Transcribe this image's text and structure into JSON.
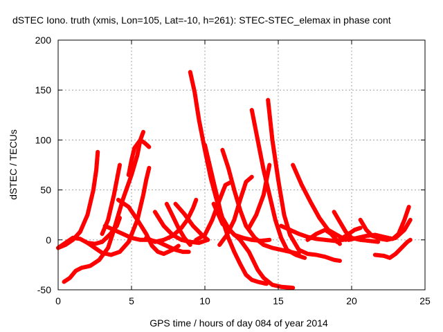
{
  "chart_data": {
    "type": "scatter",
    "title": "dSTEC Iono. truth (xmis, Lon=105, Lat=-10, h=261): STEC-STEC_elemax in phase cont",
    "xlabel": "GPS time / hours of day 084 of year 2014",
    "ylabel": "dSTEC  / TECUs",
    "xlim": [
      0,
      25
    ],
    "ylim": [
      -50,
      200
    ],
    "xticks": [
      "0",
      "5",
      "10",
      "15",
      "20",
      "25"
    ],
    "yticks": [
      "-50",
      "0",
      "50",
      "100",
      "150",
      "200"
    ],
    "grid": true,
    "marker": "+",
    "color": "#ff0000",
    "series": [
      {
        "points": [
          [
            0.0,
            -8
          ],
          [
            0.5,
            -5
          ],
          [
            1.0,
            0
          ],
          [
            1.5,
            8
          ],
          [
            2.0,
            25
          ],
          [
            2.4,
            50
          ],
          [
            2.6,
            70
          ],
          [
            2.7,
            88
          ]
        ]
      },
      {
        "points": [
          [
            0.4,
            -42
          ],
          [
            0.8,
            -38
          ],
          [
            1.2,
            -31
          ],
          [
            1.6,
            -28
          ],
          [
            2.2,
            -26
          ],
          [
            2.8,
            -20
          ],
          [
            3.4,
            -8
          ],
          [
            3.8,
            10
          ],
          [
            4.4,
            40
          ],
          [
            5.0,
            65
          ],
          [
            5.4,
            85
          ],
          [
            5.6,
            100
          ],
          [
            5.8,
            108
          ]
        ]
      },
      {
        "points": [
          [
            0.0,
            -8
          ],
          [
            0.5,
            -3
          ],
          [
            1.0,
            2
          ],
          [
            1.5,
            1
          ],
          [
            2.0,
            -3
          ],
          [
            2.5,
            -4
          ],
          [
            3.0,
            -2
          ],
          [
            3.5,
            5
          ],
          [
            4.0,
            14
          ],
          [
            4.2,
            22
          ]
        ]
      },
      {
        "points": [
          [
            3.0,
            6
          ],
          [
            3.4,
            20
          ],
          [
            3.8,
            45
          ],
          [
            4.2,
            75
          ]
        ]
      },
      {
        "points": [
          [
            2.0,
            -3
          ],
          [
            2.5,
            -8
          ],
          [
            3.0,
            -13
          ],
          [
            3.6,
            -15
          ],
          [
            4.2,
            -12
          ],
          [
            4.8,
            -2
          ],
          [
            5.4,
            20
          ],
          [
            5.8,
            45
          ],
          [
            6.0,
            60
          ],
          [
            6.2,
            72
          ]
        ]
      },
      {
        "points": [
          [
            4.8,
            65
          ],
          [
            5.0,
            80
          ],
          [
            5.2,
            92
          ],
          [
            5.6,
            100
          ],
          [
            5.9,
            97
          ],
          [
            6.2,
            93
          ]
        ]
      },
      {
        "points": [
          [
            3.2,
            14
          ],
          [
            3.8,
            10
          ],
          [
            4.4,
            6
          ],
          [
            5.0,
            2
          ],
          [
            5.6,
            0
          ],
          [
            6.2,
            0
          ],
          [
            6.8,
            -2
          ],
          [
            7.4,
            -6
          ],
          [
            8.0,
            -10
          ],
          [
            8.5,
            -12
          ],
          [
            8.9,
            -12
          ]
        ]
      },
      {
        "points": [
          [
            4.1,
            40
          ],
          [
            4.8,
            33
          ],
          [
            5.4,
            20
          ],
          [
            6.0,
            6
          ],
          [
            6.4,
            -6
          ],
          [
            6.8,
            -12
          ],
          [
            7.2,
            -14
          ],
          [
            7.8,
            -10
          ],
          [
            8.2,
            -6
          ]
        ]
      },
      {
        "points": [
          [
            6.0,
            2
          ],
          [
            6.6,
            -2
          ],
          [
            7.2,
            0
          ],
          [
            7.8,
            4
          ],
          [
            8.4,
            12
          ],
          [
            8.8,
            20
          ],
          [
            9.2,
            32
          ],
          [
            9.4,
            40
          ]
        ]
      },
      {
        "points": [
          [
            6.6,
            28
          ],
          [
            7.2,
            14
          ],
          [
            7.8,
            5
          ],
          [
            8.4,
            0
          ],
          [
            9.0,
            -2
          ],
          [
            9.6,
            -3
          ],
          [
            10.2,
            0
          ]
        ]
      },
      {
        "points": [
          [
            7.4,
            36
          ],
          [
            7.8,
            24
          ],
          [
            8.2,
            12
          ],
          [
            8.6,
            2
          ],
          [
            9.0,
            -5
          ]
        ]
      },
      {
        "points": [
          [
            8.0,
            36
          ],
          [
            8.6,
            26
          ],
          [
            9.2,
            14
          ],
          [
            9.8,
            5
          ],
          [
            10.2,
            0
          ]
        ]
      },
      {
        "points": [
          [
            9.0,
            168
          ],
          [
            9.3,
            148
          ],
          [
            9.6,
            120
          ],
          [
            10.0,
            90
          ],
          [
            10.4,
            62
          ],
          [
            10.8,
            40
          ],
          [
            11.2,
            22
          ],
          [
            11.6,
            12
          ],
          [
            12.0,
            5
          ],
          [
            12.6,
            2
          ],
          [
            13.2,
            0
          ],
          [
            13.8,
            -1
          ],
          [
            14.4,
            0
          ]
        ]
      },
      {
        "points": [
          [
            10.0,
            95
          ],
          [
            10.4,
            70
          ],
          [
            10.8,
            45
          ],
          [
            11.2,
            20
          ],
          [
            11.6,
            2
          ],
          [
            12.0,
            -12
          ],
          [
            12.4,
            -24
          ],
          [
            12.8,
            -35
          ],
          [
            13.2,
            -40
          ],
          [
            13.6,
            -42
          ],
          [
            14.2,
            -44
          ]
        ]
      },
      {
        "points": [
          [
            9.4,
            0
          ],
          [
            10.0,
            5
          ],
          [
            10.5,
            20
          ],
          [
            11.0,
            40
          ],
          [
            11.4,
            55
          ],
          [
            11.8,
            58
          ]
        ]
      },
      {
        "points": [
          [
            11.0,
            -5
          ],
          [
            11.5,
            5
          ],
          [
            12.0,
            20
          ],
          [
            12.4,
            40
          ],
          [
            12.8,
            58
          ],
          [
            13.2,
            63
          ]
        ]
      },
      {
        "points": [
          [
            11.2,
            90
          ],
          [
            11.6,
            72
          ],
          [
            12.0,
            50
          ],
          [
            12.4,
            30
          ],
          [
            12.8,
            14
          ],
          [
            13.4,
            2
          ],
          [
            14.0,
            -5
          ],
          [
            14.6,
            -8
          ],
          [
            15.2,
            -10
          ],
          [
            15.8,
            -12
          ],
          [
            16.4,
            -14
          ]
        ]
      },
      {
        "points": [
          [
            13.2,
            130
          ],
          [
            13.6,
            100
          ],
          [
            14.0,
            70
          ],
          [
            14.4,
            45
          ],
          [
            14.8,
            20
          ],
          [
            15.2,
            2
          ],
          [
            15.6,
            -10
          ],
          [
            16.2,
            -15
          ],
          [
            16.8,
            -18
          ]
        ]
      },
      {
        "points": [
          [
            14.3,
            140
          ],
          [
            14.6,
            100
          ],
          [
            15.0,
            60
          ],
          [
            15.4,
            25
          ],
          [
            15.8,
            5
          ],
          [
            16.4,
            -10
          ],
          [
            17.0,
            -14
          ],
          [
            17.6,
            -15
          ],
          [
            18.2,
            -17
          ],
          [
            18.8,
            -20
          ],
          [
            19.2,
            -21
          ]
        ]
      },
      {
        "points": [
          [
            13.0,
            12
          ],
          [
            13.5,
            25
          ],
          [
            14.0,
            45
          ],
          [
            14.4,
            75
          ]
        ]
      },
      {
        "points": [
          [
            10.6,
            36
          ],
          [
            11.2,
            16
          ],
          [
            11.8,
            8
          ],
          [
            12.4,
            0
          ],
          [
            13.0,
            -12
          ],
          [
            13.6,
            -30
          ],
          [
            14.0,
            -38
          ],
          [
            14.6,
            -45
          ],
          [
            15.2,
            -47
          ],
          [
            16.0,
            -48
          ]
        ]
      },
      {
        "points": [
          [
            16.0,
            75
          ],
          [
            16.6,
            55
          ],
          [
            17.2,
            38
          ],
          [
            17.8,
            22
          ],
          [
            18.4,
            10
          ],
          [
            19.0,
            5
          ],
          [
            19.6,
            0
          ]
        ]
      },
      {
        "points": [
          [
            15.2,
            14
          ],
          [
            15.8,
            10
          ],
          [
            16.4,
            6
          ],
          [
            17.0,
            3
          ],
          [
            17.6,
            1
          ],
          [
            18.2,
            0
          ],
          [
            18.8,
            -1
          ],
          [
            19.4,
            0
          ],
          [
            20.0,
            2
          ]
        ]
      },
      {
        "points": [
          [
            17.0,
            0
          ],
          [
            17.6,
            6
          ],
          [
            18.2,
            10
          ],
          [
            18.6,
            6
          ],
          [
            19.2,
            -4
          ]
        ]
      },
      {
        "points": [
          [
            18.8,
            28
          ],
          [
            19.2,
            18
          ],
          [
            19.6,
            8
          ],
          [
            20.0,
            2
          ],
          [
            20.6,
            0
          ],
          [
            21.2,
            -1
          ],
          [
            21.8,
            -2
          ]
        ]
      },
      {
        "points": [
          [
            19.0,
            -2
          ],
          [
            19.6,
            4
          ],
          [
            20.2,
            10
          ],
          [
            20.6,
            12
          ]
        ]
      },
      {
        "points": [
          [
            20.6,
            20
          ],
          [
            21.0,
            10
          ],
          [
            21.4,
            4
          ],
          [
            22.0,
            1
          ],
          [
            22.4,
            0
          ]
        ]
      },
      {
        "points": [
          [
            19.8,
            0
          ],
          [
            20.4,
            2
          ],
          [
            21.0,
            4
          ],
          [
            21.6,
            5
          ],
          [
            22.2,
            3
          ],
          [
            22.8,
            1
          ],
          [
            23.2,
            6
          ],
          [
            23.6,
            20
          ],
          [
            23.9,
            33
          ]
        ]
      },
      {
        "points": [
          [
            21.6,
            -15
          ],
          [
            22.2,
            -16
          ],
          [
            22.6,
            -18
          ],
          [
            23.0,
            -14
          ],
          [
            23.4,
            -8
          ],
          [
            23.8,
            -2
          ],
          [
            24.0,
            0
          ]
        ]
      },
      {
        "points": [
          [
            22.4,
            0
          ],
          [
            23.0,
            2
          ],
          [
            23.6,
            10
          ],
          [
            24.0,
            20
          ]
        ]
      }
    ]
  }
}
